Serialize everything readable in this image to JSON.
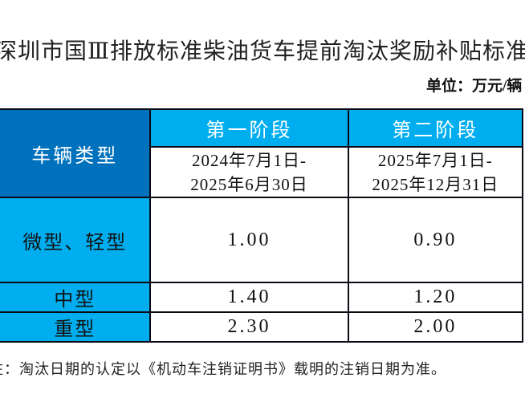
{
  "title": "深圳市国Ⅲ排放标准柴油货车提前淘汰奖励补贴标准",
  "unit_label": "单位：万元/辆",
  "table": {
    "col_header": "车辆类型",
    "phases": [
      {
        "label": "第一阶段",
        "period_line1": "2024年7月1日-",
        "period_line2": "2025年6月30日"
      },
      {
        "label": "第二阶段",
        "period_line1": "2025年7月1日-",
        "period_line2": "2025年12月31日"
      }
    ],
    "rows": [
      {
        "type": "微型、轻型",
        "phase1": "1.00",
        "phase2": "0.90"
      },
      {
        "type": "中型",
        "phase1": "1.40",
        "phase2": "1.20"
      },
      {
        "type": "重型",
        "phase1": "2.30",
        "phase2": "2.00"
      }
    ]
  },
  "footnote": "注：淘汰日期的认定以《机动车注销证明书》载明的注销日期为准。",
  "colors": {
    "header_blue": "#0071BC",
    "cyan": "#00AEEF",
    "border": "#0A0A14"
  }
}
